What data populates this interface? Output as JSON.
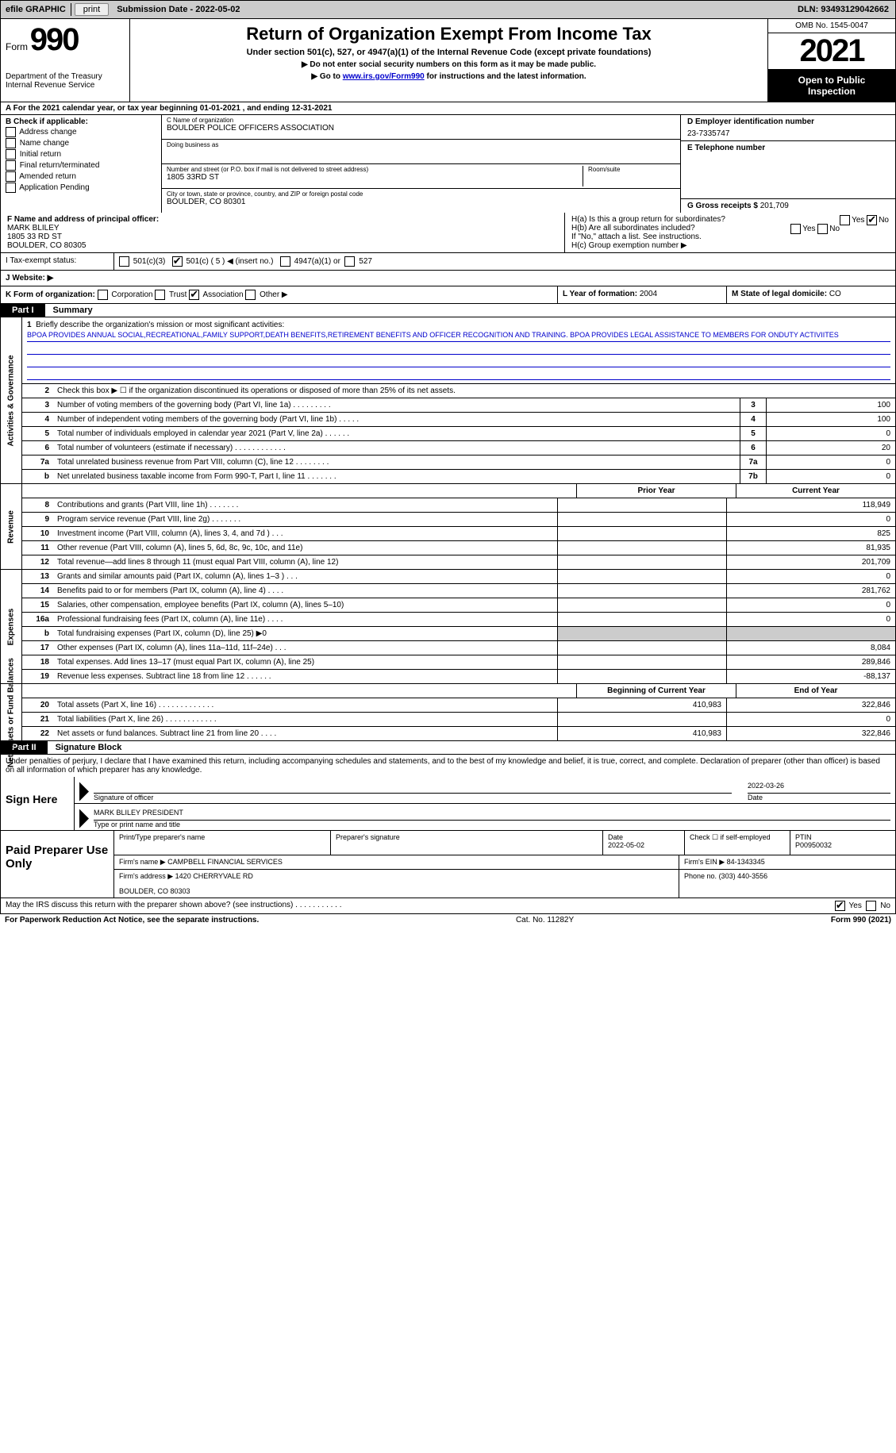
{
  "topbar": {
    "efile_label": "efile GRAPHIC",
    "print_btn": "print",
    "submission_label": "Submission Date - 2022-05-02",
    "dln": "DLN: 93493129042662"
  },
  "header": {
    "form_label": "Form",
    "form_number": "990",
    "dept": "Department of the Treasury",
    "irs": "Internal Revenue Service",
    "title": "Return of Organization Exempt From Income Tax",
    "subtitle": "Under section 501(c), 527, or 4947(a)(1) of the Internal Revenue Code (except private foundations)",
    "nossn": "▶ Do not enter social security numbers on this form as it may be made public.",
    "goto_pre": "▶ Go to ",
    "goto_link": "www.irs.gov/Form990",
    "goto_post": " for instructions and the latest information.",
    "omb": "OMB No. 1545-0047",
    "year": "2021",
    "open1": "Open to Public",
    "open2": "Inspection"
  },
  "row_a": "A For the 2021 calendar year, or tax year beginning 01-01-2021    , and ending 12-31-2021",
  "col_b": {
    "label": "B Check if applicable:",
    "items": [
      "Address change",
      "Name change",
      "Initial return",
      "Final return/terminated",
      "Amended return",
      "Application Pending"
    ]
  },
  "col_c": {
    "name_lbl": "C Name of organization",
    "name_val": "BOULDER POLICE OFFICERS ASSOCIATION",
    "dba_lbl": "Doing business as",
    "street_lbl": "Number and street (or P.O. box if mail is not delivered to street address)",
    "room_lbl": "Room/suite",
    "street_val": "1805 33RD ST",
    "city_lbl": "City or town, state or province, country, and ZIP or foreign postal code",
    "city_val": "BOULDER, CO  80301"
  },
  "col_d": {
    "ein_lbl": "D Employer identification number",
    "ein_val": "23-7335747",
    "tel_lbl": "E Telephone number",
    "gross_lbl": "G Gross receipts $",
    "gross_val": "201,709"
  },
  "row_f": {
    "f_lbl": "F Name and address of principal officer:",
    "f_name": "MARK BLILEY",
    "f_addr1": "1805 33 RD ST",
    "f_addr2": "BOULDER, CO  80305",
    "ha": "H(a)  Is this a group return for subordinates?",
    "hb": "H(b)  Are all subordinates included?",
    "hnote": "If \"No,\" attach a list. See instructions.",
    "hc": "H(c)  Group exemption number ▶",
    "yes": "Yes",
    "no": "No"
  },
  "exempt": {
    "i_lbl": "I    Tax-exempt status:",
    "opts": [
      "501(c)(3)",
      "501(c) ( 5 ) ◀ (insert no.)",
      "4947(a)(1) or",
      "527"
    ]
  },
  "website": {
    "lbl": "J   Website: ▶"
  },
  "korg": {
    "k_lbl": "K Form of organization:",
    "opts": [
      "Corporation",
      "Trust",
      "Association",
      "Other ▶"
    ],
    "l_lbl": "L Year of formation:",
    "l_val": "2004",
    "m_lbl": "M State of legal domicile:",
    "m_val": "CO"
  },
  "part1": {
    "tab": "Part I",
    "title": "Summary"
  },
  "rotated": {
    "ag": "Activities & Governance",
    "rev": "Revenue",
    "exp": "Expenses",
    "net": "Net Assets or Fund Balances"
  },
  "briefly": {
    "num": "1",
    "lbl": "Briefly describe the organization's mission or most significant activities:",
    "text": "BPOA PROVIDES ANNUAL SOCIAL,RECREATIONAL,FAMILY SUPPORT,DEATH BENEFITS,RETIREMENT BENEFITS AND OFFICER RECOGNITION AND TRAINING. BPOA PROVIDES LEGAL ASSISTANCE TO MEMBERS FOR ONDUTY ACTIVIITES"
  },
  "ag_lines": [
    {
      "n": "2",
      "d": "Check this box ▶ ☐  if the organization discontinued its operations or disposed of more than 25% of its net assets."
    },
    {
      "n": "3",
      "d": "Number of voting members of the governing body (Part VI, line 1a)   .     .     .     .     .     .     .     .     .",
      "bn": "3",
      "bv": "100"
    },
    {
      "n": "4",
      "d": "Number of independent voting members of the governing body (Part VI, line 1b)   .     .     .     .     .",
      "bn": "4",
      "bv": "100"
    },
    {
      "n": "5",
      "d": "Total number of individuals employed in calendar year 2021 (Part V, line 2a)   .     .     .     .     .     .",
      "bn": "5",
      "bv": "0"
    },
    {
      "n": "6",
      "d": "Total number of volunteers (estimate if necessary)     .     .     .     .     .     .     .     .     .     .     .     .",
      "bn": "6",
      "bv": "20"
    },
    {
      "n": "7a",
      "d": "Total unrelated business revenue from Part VIII, column (C), line 12   .     .     .     .     .     .     .     .",
      "bn": "7a",
      "bv": "0"
    },
    {
      "n": "b",
      "d": "Net unrelated business taxable income from Form 990-T, Part I, line 11   .     .     .     .     .     .     .",
      "bn": "7b",
      "bv": "0"
    }
  ],
  "twocol_head": {
    "prior": "Prior Year",
    "current": "Current Year"
  },
  "rev_lines": [
    {
      "n": "8",
      "d": "Contributions and grants (Part VIII, line 1h)    .     .     .     .     .     .     .",
      "c1": "",
      "c2": "118,949"
    },
    {
      "n": "9",
      "d": "Program service revenue (Part VIII, line 2g)    .     .     .     .     .     .     .",
      "c1": "",
      "c2": "0"
    },
    {
      "n": "10",
      "d": "Investment income (Part VIII, column (A), lines 3, 4, and 7d )    .     .     .",
      "c1": "",
      "c2": "825"
    },
    {
      "n": "11",
      "d": "Other revenue (Part VIII, column (A), lines 5, 6d, 8c, 9c, 10c, and 11e)",
      "c1": "",
      "c2": "81,935"
    },
    {
      "n": "12",
      "d": "Total revenue—add lines 8 through 11 (must equal Part VIII, column (A), line 12)",
      "c1": "",
      "c2": "201,709"
    }
  ],
  "exp_lines": [
    {
      "n": "13",
      "d": "Grants and similar amounts paid (Part IX, column (A), lines 1–3 )   .     .     .",
      "c1": "",
      "c2": "0"
    },
    {
      "n": "14",
      "d": "Benefits paid to or for members (Part IX, column (A), line 4)   .     .     .     .",
      "c1": "",
      "c2": "281,762"
    },
    {
      "n": "15",
      "d": "Salaries, other compensation, employee benefits (Part IX, column (A), lines 5–10)",
      "c1": "",
      "c2": "0"
    },
    {
      "n": "16a",
      "d": "Professional fundraising fees (Part IX, column (A), line 11e)   .     .     .     .",
      "c1": "",
      "c2": "0"
    },
    {
      "n": "b",
      "d": "Total fundraising expenses (Part IX, column (D), line 25) ▶0",
      "c1": "shade",
      "c2": "shade"
    },
    {
      "n": "17",
      "d": "Other expenses (Part IX, column (A), lines 11a–11d, 11f–24e)   .     .     .",
      "c1": "",
      "c2": "8,084"
    },
    {
      "n": "18",
      "d": "Total expenses. Add lines 13–17 (must equal Part IX, column (A), line 25)",
      "c1": "",
      "c2": "289,846"
    },
    {
      "n": "19",
      "d": "Revenue less expenses. Subtract line 18 from line 12   .     .     .     .     .     .",
      "c1": "",
      "c2": "-88,137"
    }
  ],
  "net_head": {
    "c1": "Beginning of Current Year",
    "c2": "End of Year"
  },
  "net_lines": [
    {
      "n": "20",
      "d": "Total assets (Part X, line 16)   .     .     .     .     .     .     .     .     .     .     .     .     .",
      "c1": "410,983",
      "c2": "322,846"
    },
    {
      "n": "21",
      "d": "Total liabilities (Part X, line 26)   .     .     .     .     .     .     .     .     .     .     .     .",
      "c1": "",
      "c2": "0"
    },
    {
      "n": "22",
      "d": "Net assets or fund balances. Subtract line 21 from line 20   .     .     .     .",
      "c1": "410,983",
      "c2": "322,846"
    }
  ],
  "part2": {
    "tab": "Part II",
    "title": "Signature Block"
  },
  "sig_text": "Under penalties of perjury, I declare that I have examined this return, including accompanying schedules and statements, and to the best of my knowledge and belief, it is true, correct, and complete. Declaration of preparer (other than officer) is based on all information of which preparer has any knowledge.",
  "sign": {
    "label": "Sign Here",
    "sig_of_officer": "Signature of officer",
    "date": "2022-03-26",
    "date_lbl": "Date",
    "name": "MARK BLILEY PRESIDENT",
    "name_lbl": "Type or print name and title"
  },
  "paid": {
    "label": "Paid Preparer Use Only",
    "print_name_lbl": "Print/Type preparer's name",
    "sig_lbl": "Preparer's signature",
    "date_lbl": "Date",
    "date_val": "2022-05-02",
    "check_lbl": "Check ☐ if self-employed",
    "ptin_lbl": "PTIN",
    "ptin_val": "P00950032",
    "firm_name_lbl": "Firm's name    ▶",
    "firm_name_val": "CAMPBELL FINANCIAL SERVICES",
    "firm_ein_lbl": "Firm's EIN ▶",
    "firm_ein_val": "84-1343345",
    "firm_addr_lbl": "Firm's address ▶",
    "firm_addr_val1": "1420 CHERRYVALE RD",
    "firm_addr_val2": "BOULDER, CO  80303",
    "phone_lbl": "Phone no.",
    "phone_val": "(303) 440-3556"
  },
  "discuss": {
    "text": "May the IRS discuss this return with the preparer shown above? (see instructions)    .     .     .     .     .     .     .     .     .     .     .",
    "yes": "Yes",
    "no": "No"
  },
  "footer": {
    "left": "For Paperwork Reduction Act Notice, see the separate instructions.",
    "mid": "Cat. No. 11282Y",
    "right": "Form 990 (2021)"
  }
}
